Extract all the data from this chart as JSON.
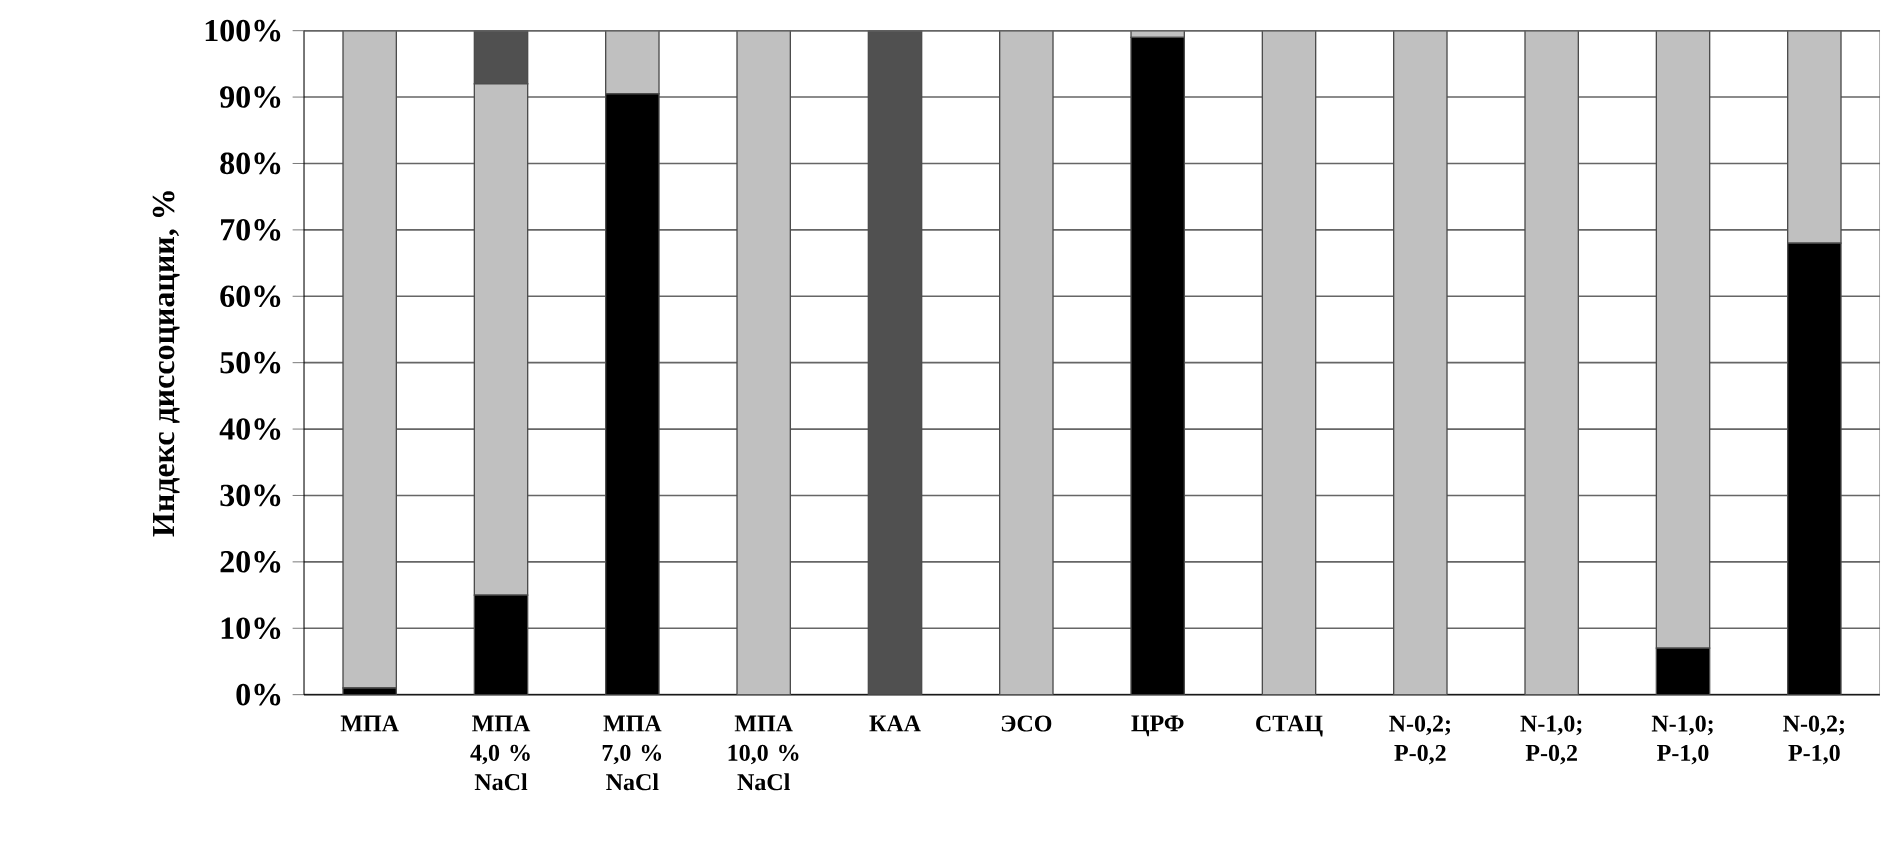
{
  "chart_data": {
    "type": "bar",
    "stacked": true,
    "ylabel": "Индекс диссоциации, %",
    "categories": [
      "МПА",
      "МПА 4,0 % NaCl",
      "МПА 7,0 % NaCl",
      "МПА 10,0 % NaCl",
      "КАА",
      "ЭСО",
      "ЦРФ",
      "СТАЦ",
      "N-0,2; P-0,2",
      "N-1,0; P-0,2",
      "N-1,0; P-1,0",
      "N-0,2; P-1,0"
    ],
    "series": [
      {
        "color": "#000000",
        "values": [
          1,
          15,
          90.5,
          0,
          0,
          0,
          99,
          0,
          0,
          0,
          7,
          68
        ]
      },
      {
        "color": "#c0c0c0",
        "values": [
          99,
          77,
          9.5,
          100,
          0,
          100,
          1,
          100,
          100,
          100,
          93,
          32
        ]
      },
      {
        "color": "#505050",
        "values": [
          0,
          8,
          0,
          0,
          100,
          0,
          0,
          0,
          0,
          0,
          0,
          0
        ]
      }
    ],
    "ylim": [
      0,
      100
    ],
    "yticks": [
      {
        "value": 0,
        "label": "0%"
      },
      {
        "value": 10,
        "label": "10%"
      },
      {
        "value": 20,
        "label": "20%"
      },
      {
        "value": 30,
        "label": "30%"
      },
      {
        "value": 40,
        "label": "40%"
      },
      {
        "value": 50,
        "label": "50%"
      },
      {
        "value": 60,
        "label": "60%"
      },
      {
        "value": 70,
        "label": "70%"
      },
      {
        "value": 80,
        "label": "80%"
      },
      {
        "value": 90,
        "label": "90%"
      },
      {
        "value": 100,
        "label": "100%"
      }
    ],
    "grid": "y"
  }
}
